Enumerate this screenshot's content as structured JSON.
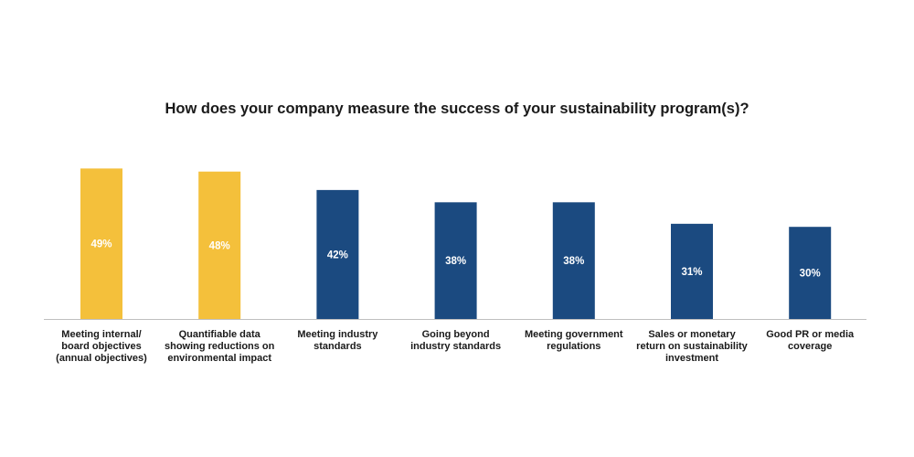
{
  "chart_data": {
    "type": "bar",
    "title": "How does your company measure the success of your sustainability program(s)?",
    "categories": [
      "Meeting internal/\nboard objectives\n(annual objectives)",
      "Quantifiable data\nshowing reductions on\nenvironmental impact",
      "Meeting industry\nstandards",
      "Going beyond\nindustry standards",
      "Meeting government\nregulations",
      "Sales or monetary\nreturn on sustainability\ninvestment",
      "Good PR or media\ncoverage"
    ],
    "values": [
      49,
      48,
      42,
      38,
      38,
      31,
      30
    ],
    "value_labels": [
      "49%",
      "48%",
      "42%",
      "38%",
      "38%",
      "31%",
      "30%"
    ],
    "highlight_count": 2,
    "ylim": [
      0,
      100
    ],
    "grid": false,
    "legend": "none",
    "colors": {
      "highlight": "#F4C03B",
      "default": "#1B4A80",
      "baseline": "#bfbfbf",
      "data_label": "#ffffff"
    }
  }
}
